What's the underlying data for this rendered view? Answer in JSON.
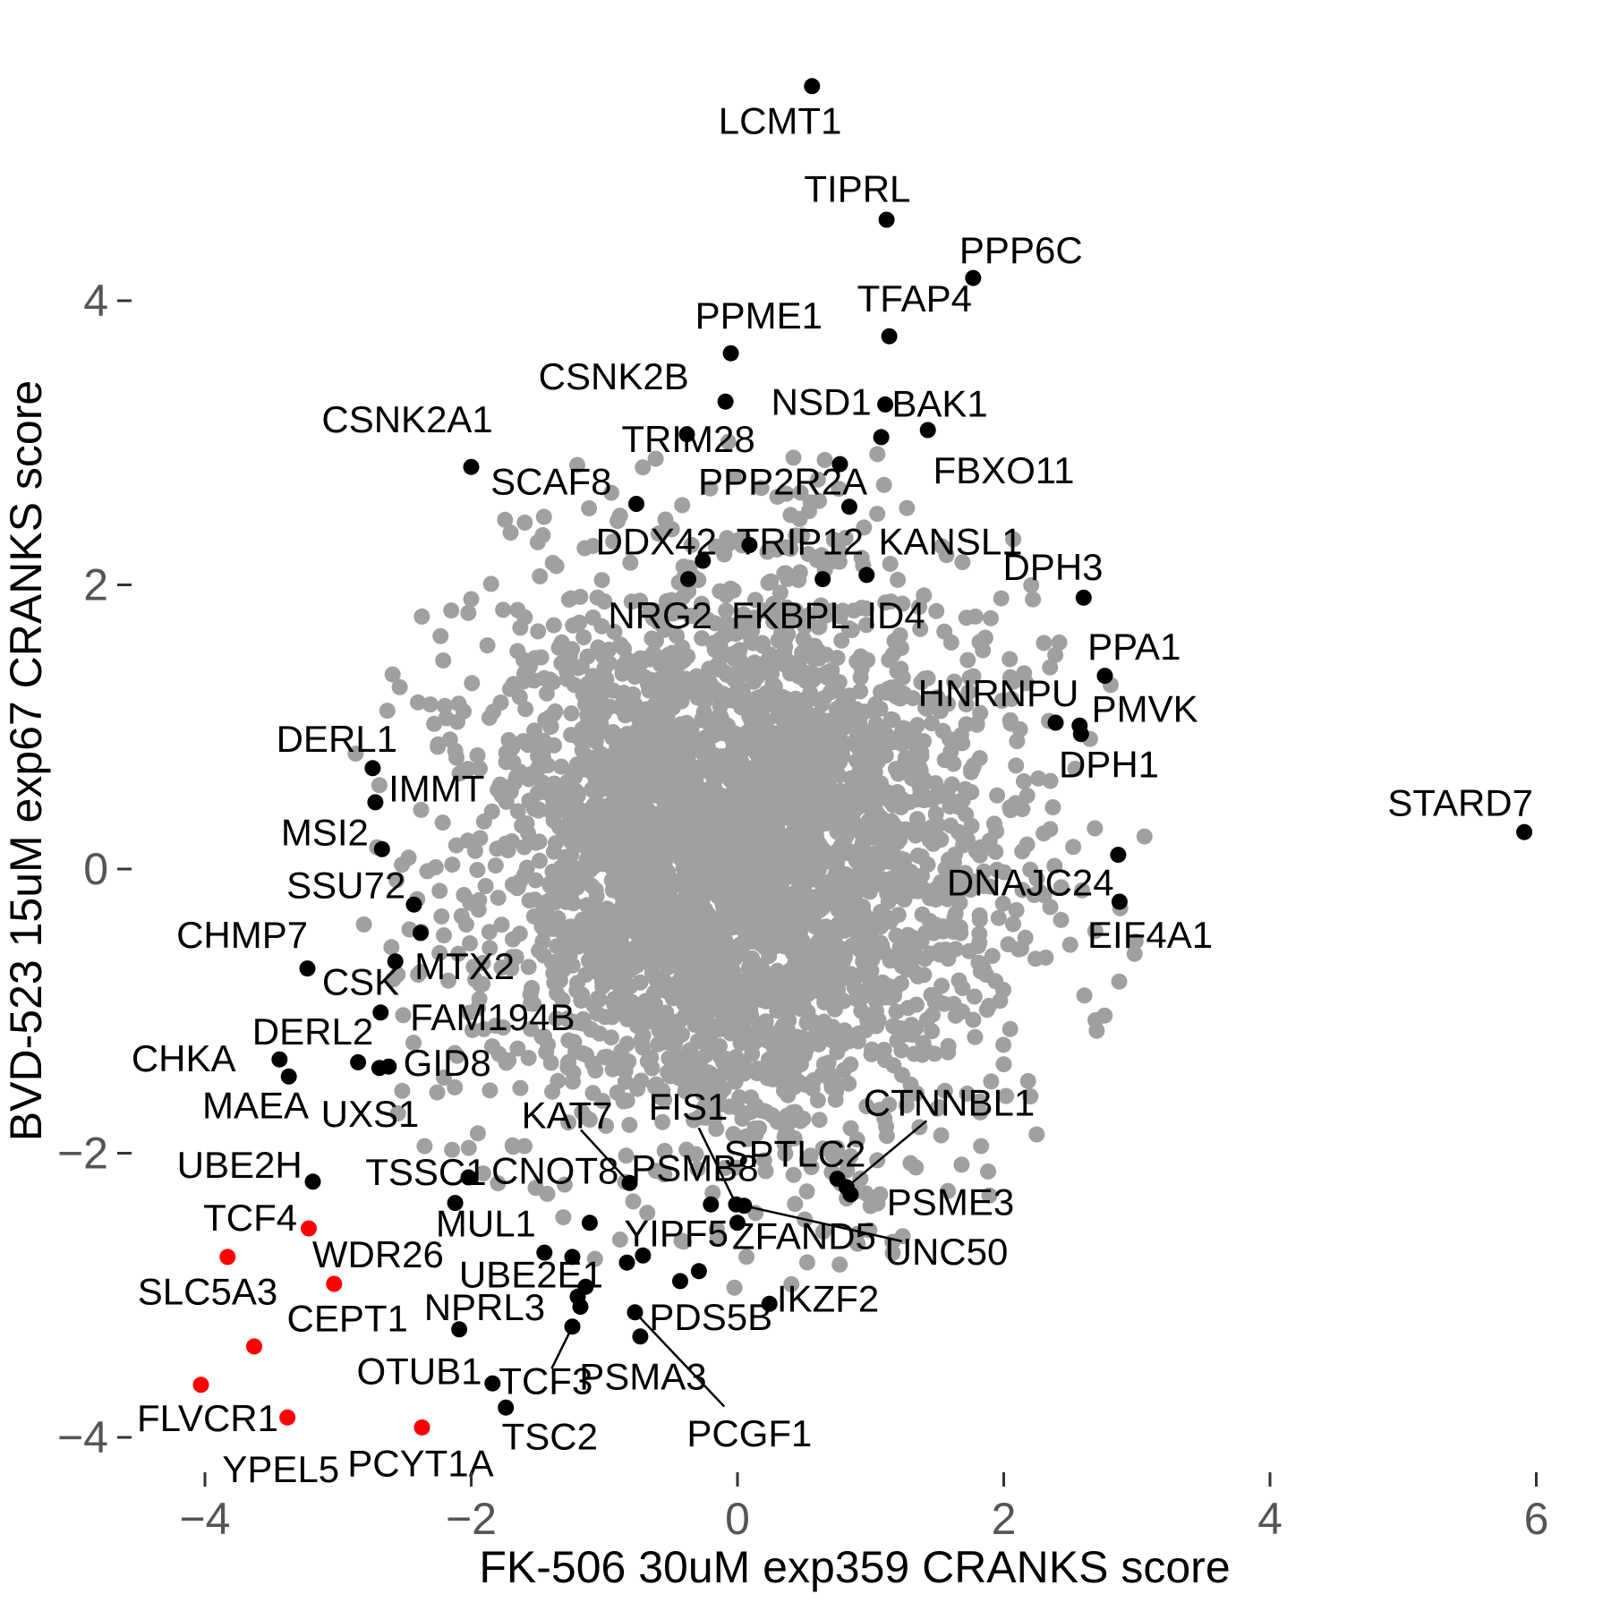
{
  "chart_data": {
    "type": "scatter",
    "title": "",
    "xlabel": "FK-506 30uM exp359 CRANKS score",
    "ylabel": "BVD-523 15uM exp67 CRANKS score",
    "xlim": [
      -4.6,
      6.4
    ],
    "ylim": [
      -4.35,
      5.9
    ],
    "grid": false,
    "legend": "none",
    "x_ticks": [
      {
        "v": -4,
        "label": "−4"
      },
      {
        "v": -2,
        "label": "−2"
      },
      {
        "v": 0,
        "label": "0"
      },
      {
        "v": 2,
        "label": "2"
      },
      {
        "v": 4,
        "label": "4"
      },
      {
        "v": 6,
        "label": "6"
      }
    ],
    "y_ticks": [
      {
        "v": 4,
        "label": "4"
      },
      {
        "v": 2,
        "label": "2"
      },
      {
        "v": 0,
        "label": "0"
      },
      {
        "v": -2,
        "label": "−2"
      },
      {
        "v": -4,
        "label": "−4"
      }
    ],
    "labeled_points": [
      {
        "gene": "LCMT1",
        "x": 0.56,
        "y": 5.51,
        "color": "black",
        "lx": 0.32,
        "ly": 5.27,
        "leader": false
      },
      {
        "gene": "TIPRL",
        "x": 1.12,
        "y": 4.57,
        "color": "black",
        "lx": 0.9,
        "ly": 4.79,
        "leader": false
      },
      {
        "gene": "PPP6C",
        "x": 1.77,
        "y": 4.16,
        "color": "black",
        "lx": 2.13,
        "ly": 4.36,
        "leader": false
      },
      {
        "gene": "TFAP4",
        "x": 1.14,
        "y": 3.75,
        "color": "black",
        "lx": 1.33,
        "ly": 4.02,
        "leader": false
      },
      {
        "gene": "PPME1",
        "x": -0.05,
        "y": 3.63,
        "color": "black",
        "lx": 0.16,
        "ly": 3.9,
        "leader": false
      },
      {
        "gene": "CSNK2B",
        "x": -0.09,
        "y": 3.29,
        "color": "black",
        "lx": -0.93,
        "ly": 3.47,
        "leader": false
      },
      {
        "gene": "NSD1",
        "x": 1.11,
        "y": 3.27,
        "color": "black",
        "lx": 0.63,
        "ly": 3.29,
        "leader": false
      },
      {
        "gene": "BAK1",
        "x": 1.43,
        "y": 3.09,
        "color": "black",
        "lx": 1.52,
        "ly": 3.28,
        "leader": false
      },
      {
        "gene": "TRIM28",
        "x": -0.38,
        "y": 3.06,
        "color": "black",
        "lx": -0.37,
        "ly": 3.03,
        "leader": false
      },
      {
        "gene": "CSNK2A1",
        "x": -2.0,
        "y": 2.83,
        "color": "black",
        "lx": -2.48,
        "ly": 3.17,
        "leader": false
      },
      {
        "gene": "FBXO11",
        "x": 1.08,
        "y": 3.04,
        "color": "black",
        "lx": 2.0,
        "ly": 2.81,
        "leader": false
      },
      {
        "gene": "SCAF8",
        "x": -0.76,
        "y": 2.57,
        "color": "black",
        "lx": -1.4,
        "ly": 2.73,
        "leader": false
      },
      {
        "gene": "PPP2R2A",
        "x": 0.77,
        "y": 2.85,
        "color": "black",
        "lx": 0.34,
        "ly": 2.73,
        "leader": false
      },
      {
        "gene": "DDX42",
        "x": -0.26,
        "y": 2.17,
        "color": "black",
        "lx": -0.61,
        "ly": 2.31,
        "leader": false
      },
      {
        "gene": "TRIP12",
        "x": 0.09,
        "y": 2.28,
        "color": "black",
        "lx": 0.47,
        "ly": 2.31,
        "leader": false
      },
      {
        "gene": "KANSL1",
        "x": 0.84,
        "y": 2.55,
        "color": "black",
        "lx": 1.6,
        "ly": 2.31,
        "leader": false
      },
      {
        "gene": "NRG2",
        "x": -0.37,
        "y": 2.04,
        "color": "black",
        "lx": -0.58,
        "ly": 1.79,
        "leader": false
      },
      {
        "gene": "FKBPL",
        "x": 0.64,
        "y": 2.04,
        "color": "black",
        "lx": 0.4,
        "ly": 1.79,
        "leader": false
      },
      {
        "gene": "ID4",
        "x": 0.97,
        "y": 2.07,
        "color": "black",
        "lx": 1.19,
        "ly": 1.79,
        "leader": false
      },
      {
        "gene": "DPH3",
        "x": 2.6,
        "y": 1.91,
        "color": "black",
        "lx": 2.37,
        "ly": 2.13,
        "leader": false
      },
      {
        "gene": "PPA1",
        "x": 2.76,
        "y": 1.36,
        "color": "black",
        "lx": 2.98,
        "ly": 1.57,
        "leader": false
      },
      {
        "gene": "HNRNPU",
        "x": 2.39,
        "y": 1.03,
        "color": "black",
        "lx": 1.96,
        "ly": 1.24,
        "leader": false
      },
      {
        "gene": "PMVK",
        "x": 2.57,
        "y": 1.01,
        "color": "black",
        "lx": 3.06,
        "ly": 1.13,
        "leader": false
      },
      {
        "gene": "DPH1",
        "x": 2.58,
        "y": 0.95,
        "color": "black",
        "lx": 2.79,
        "ly": 0.74,
        "leader": false
      },
      {
        "gene": "STARD7",
        "x": 5.91,
        "y": 0.26,
        "color": "black",
        "lx": 5.43,
        "ly": 0.47,
        "leader": false
      },
      {
        "gene": "DNAJC24",
        "x": 2.86,
        "y": 0.1,
        "color": "black",
        "lx": 2.2,
        "ly": -0.09,
        "leader": false
      },
      {
        "gene": "EIF4A1",
        "x": 2.87,
        "y": -0.23,
        "color": "black",
        "lx": 3.1,
        "ly": -0.46,
        "leader": false
      },
      {
        "gene": "DERL1",
        "x": -2.74,
        "y": 0.71,
        "color": "black",
        "lx": -3.01,
        "ly": 0.92,
        "leader": false
      },
      {
        "gene": "IMMT",
        "x": -2.72,
        "y": 0.47,
        "color": "black",
        "lx": -2.26,
        "ly": 0.57,
        "leader": false
      },
      {
        "gene": "MSI2",
        "x": -2.67,
        "y": 0.14,
        "color": "black",
        "lx": -3.1,
        "ly": 0.26,
        "leader": false
      },
      {
        "gene": "SSU72",
        "x": -2.43,
        "y": -0.25,
        "color": "black",
        "lx": -2.94,
        "ly": -0.11,
        "leader": false
      },
      {
        "gene": "CHMP7",
        "x": -3.23,
        "y": -0.7,
        "color": "black",
        "lx": -3.72,
        "ly": -0.46,
        "leader": false
      },
      {
        "gene": "MTX2",
        "x": -2.38,
        "y": -0.45,
        "color": "black",
        "lx": -2.05,
        "ly": -0.68,
        "leader": false
      },
      {
        "gene": "CSK",
        "x": -2.57,
        "y": -0.65,
        "color": "black",
        "lx": -2.83,
        "ly": -0.79,
        "leader": false
      },
      {
        "gene": "FAM194B",
        "x": -2.68,
        "y": -1.01,
        "color": "black",
        "lx": -1.84,
        "ly": -1.04,
        "leader": false
      },
      {
        "gene": "CHKA",
        "x": -3.44,
        "y": -1.34,
        "color": "black",
        "lx": -4.16,
        "ly": -1.33,
        "leader": false
      },
      {
        "gene": "DERL2",
        "x": -2.85,
        "y": -1.36,
        "color": "black",
        "lx": -3.19,
        "ly": -1.14,
        "leader": false
      },
      {
        "gene": "UXS1",
        "x": -2.69,
        "y": -1.4,
        "color": "black",
        "lx": -2.76,
        "ly": -1.72,
        "leader": false
      },
      {
        "gene": "GID8",
        "x": -2.62,
        "y": -1.39,
        "color": "black",
        "lx": -2.18,
        "ly": -1.36,
        "leader": false
      },
      {
        "gene": "MAEA",
        "x": -3.37,
        "y": -1.46,
        "color": "black",
        "lx": -3.62,
        "ly": -1.66,
        "leader": false
      },
      {
        "gene": "UBE2H",
        "x": -3.19,
        "y": -2.2,
        "color": "black",
        "lx": -3.74,
        "ly": -2.08,
        "leader": false
      },
      {
        "gene": "TSSC1",
        "x": -2.02,
        "y": -2.17,
        "color": "black",
        "lx": -2.34,
        "ly": -2.13,
        "leader": false
      },
      {
        "gene": "CNOT8",
        "x": -1.11,
        "y": -2.49,
        "color": "black",
        "lx": -1.37,
        "ly": -2.12,
        "leader": false
      },
      {
        "gene": "MUL1",
        "x": -2.12,
        "y": -2.35,
        "color": "black",
        "lx": -1.89,
        "ly": -2.49,
        "leader": false
      },
      {
        "gene": "KAT7",
        "x": -0.81,
        "y": -2.21,
        "color": "black",
        "lx": -1.28,
        "ly": -1.73,
        "leader": true
      },
      {
        "gene": "FIS1",
        "x": -0.01,
        "y": -2.36,
        "color": "black",
        "lx": -0.37,
        "ly": -1.67,
        "leader": true
      },
      {
        "gene": "CTNNBL1",
        "x": 0.82,
        "y": -2.24,
        "color": "black",
        "lx": 1.59,
        "ly": -1.64,
        "leader": true
      },
      {
        "gene": "SPTLC2",
        "x": 0.75,
        "y": -2.18,
        "color": "black",
        "lx": 0.43,
        "ly": -2.0,
        "leader": false
      },
      {
        "gene": "PSMB8",
        "x": -0.2,
        "y": -2.36,
        "color": "black",
        "lx": -0.32,
        "ly": -2.1,
        "leader": false
      },
      {
        "gene": "PSME3",
        "x": 0.85,
        "y": -2.29,
        "color": "black",
        "lx": 1.6,
        "ly": -2.34,
        "leader": false
      },
      {
        "gene": "YIPF5",
        "x": -0.71,
        "y": -2.72,
        "color": "black",
        "lx": -0.46,
        "ly": -2.56,
        "leader": false
      },
      {
        "gene": "ZFAND5",
        "x": 0.0,
        "y": -2.49,
        "color": "black",
        "lx": 0.5,
        "ly": -2.58,
        "leader": false
      },
      {
        "gene": "UNC50",
        "x": 0.05,
        "y": -2.37,
        "color": "black",
        "lx": 1.57,
        "ly": -2.69,
        "leader": true
      },
      {
        "gene": "PDS5B",
        "x": -0.29,
        "y": -2.83,
        "color": "black",
        "lx": -0.2,
        "ly": -3.15,
        "leader": false
      },
      {
        "gene": "IKZF2",
        "x": 0.24,
        "y": -3.06,
        "color": "black",
        "lx": 0.68,
        "ly": -3.02,
        "leader": false
      },
      {
        "gene": "UBE2E1",
        "x": -1.14,
        "y": -2.94,
        "color": "black",
        "lx": -1.55,
        "ly": -2.85,
        "leader": false
      },
      {
        "gene": "NPRL3",
        "x": -2.09,
        "y": -3.24,
        "color": "black",
        "lx": -1.9,
        "ly": -3.08,
        "leader": false
      },
      {
        "gene": "TCF3",
        "x": -1.24,
        "y": -3.22,
        "color": "black",
        "lx": -1.44,
        "ly": -3.6,
        "leader": true
      },
      {
        "gene": "PSMA3",
        "x": -0.73,
        "y": -3.29,
        "color": "black",
        "lx": -0.71,
        "ly": -3.57,
        "leader": false
      },
      {
        "gene": "PCGF1",
        "x": -0.77,
        "y": -3.12,
        "color": "black",
        "lx": 0.09,
        "ly": -3.97,
        "leader": true
      },
      {
        "gene": "OTUB1",
        "x": -1.84,
        "y": -3.62,
        "color": "black",
        "lx": -2.39,
        "ly": -3.53,
        "leader": false
      },
      {
        "gene": "TSC2",
        "x": -1.74,
        "y": -3.79,
        "color": "black",
        "lx": -1.41,
        "ly": -3.99,
        "leader": false
      },
      {
        "gene": "TCF4",
        "x": -3.22,
        "y": -2.53,
        "color": "red",
        "lx": -3.66,
        "ly": -2.45,
        "leader": false
      },
      {
        "gene": "WDR26",
        "x": -3.03,
        "y": -2.92,
        "color": "red",
        "lx": -2.7,
        "ly": -2.71,
        "leader": false
      },
      {
        "gene": "SLC5A3",
        "x": -3.83,
        "y": -2.73,
        "color": "red",
        "lx": -3.98,
        "ly": -2.97,
        "leader": false
      },
      {
        "gene": "CEPT1",
        "x": -3.63,
        "y": -3.36,
        "color": "red",
        "lx": -2.93,
        "ly": -3.16,
        "leader": false
      },
      {
        "gene": "FLVCR1",
        "x": -4.03,
        "y": -3.63,
        "color": "red",
        "lx": -3.98,
        "ly": -3.86,
        "leader": false
      },
      {
        "gene": "YPEL5",
        "x": -3.38,
        "y": -3.86,
        "color": "red",
        "lx": -3.43,
        "ly": -4.22,
        "leader": false
      },
      {
        "gene": "PCYT1A",
        "x": -2.37,
        "y": -3.93,
        "color": "red",
        "lx": -2.38,
        "ly": -4.18,
        "leader": false
      }
    ],
    "unlabeled_black_points": [
      [
        -1.45,
        -2.7
      ],
      [
        -1.24,
        -2.73
      ],
      [
        -0.83,
        -2.77
      ],
      [
        -0.43,
        -2.9
      ],
      [
        -1.2,
        -3.01
      ],
      [
        -1.18,
        -3.08
      ]
    ],
    "extra_gray_points": [
      [
        -2.69,
        0.59
      ],
      [
        1.83,
        -1.95
      ],
      [
        1.34,
        -2.1
      ],
      [
        1.05,
        -2.05
      ],
      [
        1.3,
        -2.07
      ],
      [
        -2.47,
        0.08
      ],
      [
        -2.52,
        0.03
      ],
      [
        1.57,
        2.21
      ],
      [
        1.69,
        2.16
      ],
      [
        -2.0,
        1.9
      ],
      [
        -2.15,
        1.82
      ],
      [
        2.2,
        -1.6
      ],
      [
        -2.55,
        -1.72
      ],
      [
        -1.95,
        -1.86
      ],
      [
        2.35,
        0.62
      ],
      [
        2.3,
        0.25
      ],
      [
        -2.6,
        -0.55
      ],
      [
        0.3,
        2.62
      ],
      [
        0.55,
        2.58
      ],
      [
        -0.9,
        2.45
      ],
      [
        1.05,
        2.5
      ],
      [
        -1.5,
        2.3
      ],
      [
        2.05,
        1.35
      ],
      [
        2.1,
        0.9
      ],
      [
        -2.35,
        -1.95
      ],
      [
        0.85,
        -2.02
      ],
      [
        -0.15,
        -2.6
      ],
      [
        -1.6,
        -1.95
      ],
      [
        -0.55,
        -2.15
      ],
      [
        0.2,
        -2.05
      ]
    ],
    "background_cloud": {
      "center": [
        0.02,
        0.1
      ],
      "sigma_core": 0.92,
      "n_core": 3000,
      "sigma_tail": 1.38,
      "n_tail": 620,
      "max_radius": 3.05,
      "seed": 1337
    },
    "point_radius": 9,
    "colors": {
      "gray": "#A0A0A0",
      "black": "#000000",
      "red": "#FF0000",
      "tick_text": "#555555",
      "tick_mark": "#333333",
      "axis_title": "#000000",
      "background": "#FFFFFF"
    }
  }
}
